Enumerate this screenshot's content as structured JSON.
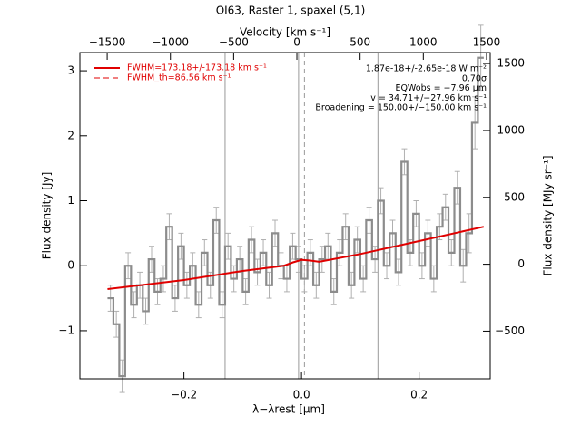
{
  "chart_data": {
    "type": "step",
    "title": "OI63, Raster 1, spaxel (5,1)",
    "xlabel": "λ−λrest [μm]",
    "ylabel": "Flux density [Jy]",
    "x2label": "Velocity [km s⁻¹]",
    "y2label": "Flux density [MJy sr⁻¹]",
    "xlim": [
      -0.377,
      0.321
    ],
    "ylim": [
      -1.74,
      3.28
    ],
    "x2lim": [
      -1716,
      1529
    ],
    "y2lim": [
      -856,
      1582
    ],
    "xticks": [
      {
        "value": -0.2,
        "label": "−0.2"
      },
      {
        "value": 0.0,
        "label": "0.0"
      },
      0.2
    ],
    "yticks": [
      {
        "value": -1,
        "label": "−1"
      },
      0,
      1,
      2,
      3
    ],
    "x2ticks": [
      {
        "value": -1500,
        "label": "−1500"
      },
      {
        "value": -1000,
        "label": "−1000"
      },
      {
        "value": -500,
        "label": "−500"
      },
      0,
      500,
      1000,
      1500
    ],
    "y2ticks": [
      {
        "value": -500,
        "label": "−500"
      },
      0,
      500,
      1000,
      1500
    ],
    "vlines": [
      -0.13,
      -0.005,
      0.13
    ],
    "vline_color": "#999999",
    "dashed_vlines": [
      0.005
    ],
    "legend": "upper left",
    "spectrum": {
      "color": "#8c8c8c",
      "error_color": "#b0b0b0",
      "x": [
        -0.325,
        -0.315,
        -0.305,
        -0.295,
        -0.285,
        -0.275,
        -0.265,
        -0.255,
        -0.245,
        -0.235,
        -0.225,
        -0.215,
        -0.205,
        -0.195,
        -0.185,
        -0.175,
        -0.165,
        -0.155,
        -0.145,
        -0.135,
        -0.125,
        -0.115,
        -0.105,
        -0.095,
        -0.085,
        -0.075,
        -0.065,
        -0.055,
        -0.045,
        -0.035,
        -0.025,
        -0.015,
        -0.005,
        0.005,
        0.015,
        0.025,
        0.035,
        0.045,
        0.055,
        0.065,
        0.075,
        0.085,
        0.095,
        0.105,
        0.115,
        0.125,
        0.135,
        0.145,
        0.155,
        0.165,
        0.175,
        0.185,
        0.195,
        0.205,
        0.215,
        0.225,
        0.235,
        0.245,
        0.255,
        0.265,
        0.275,
        0.285,
        0.295,
        0.305
      ],
      "values": [
        -0.5,
        -0.9,
        -1.7,
        0.0,
        -0.6,
        -0.3,
        -0.7,
        0.1,
        -0.4,
        -0.2,
        0.6,
        -0.5,
        0.3,
        -0.3,
        0.0,
        -0.6,
        0.2,
        -0.3,
        0.7,
        -0.6,
        0.3,
        -0.2,
        0.1,
        -0.4,
        0.4,
        -0.1,
        0.2,
        -0.3,
        0.5,
        0.0,
        -0.2,
        0.3,
        0.1,
        -0.2,
        0.2,
        -0.3,
        0.1,
        0.3,
        -0.4,
        0.2,
        0.6,
        -0.3,
        0.4,
        -0.2,
        0.7,
        0.1,
        1.0,
        0.0,
        0.5,
        -0.1,
        1.6,
        0.2,
        0.8,
        0.0,
        0.5,
        -0.2,
        0.6,
        0.9,
        0.2,
        1.2,
        0.0,
        0.5,
        2.2,
        3.2
      ],
      "errors": [
        0.2,
        0.2,
        0.25,
        0.2,
        0.2,
        0.2,
        0.2,
        0.2,
        0.2,
        0.2,
        0.2,
        0.2,
        0.2,
        0.2,
        0.2,
        0.2,
        0.2,
        0.2,
        0.2,
        0.2,
        0.2,
        0.2,
        0.2,
        0.2,
        0.2,
        0.2,
        0.2,
        0.2,
        0.2,
        0.2,
        0.2,
        0.2,
        0.2,
        0.2,
        0.2,
        0.2,
        0.2,
        0.2,
        0.2,
        0.2,
        0.2,
        0.2,
        0.2,
        0.2,
        0.2,
        0.2,
        0.2,
        0.2,
        0.2,
        0.2,
        0.2,
        0.2,
        0.2,
        0.2,
        0.2,
        0.2,
        0.2,
        0.2,
        0.2,
        0.25,
        0.25,
        0.3,
        0.4,
        0.5
      ]
    },
    "fits": [
      {
        "name": "FWHM=173.18+/-173.18 km s⁻¹",
        "color": "#e00000",
        "dash": false,
        "x": [
          -0.33,
          -0.2,
          -0.1,
          -0.03,
          -0.015,
          0.0,
          0.015,
          0.03,
          0.1,
          0.2,
          0.31
        ],
        "values": [
          -0.36,
          -0.22,
          -0.08,
          0.0,
          0.05,
          0.09,
          0.08,
          0.06,
          0.18,
          0.38,
          0.6
        ]
      },
      {
        "name": "FWHM_th=86.56 km s⁻¹",
        "color": "#e00000",
        "dash": true,
        "x": [
          -0.03,
          -0.01,
          0.0,
          0.01,
          0.03
        ],
        "values": [
          0.0,
          0.07,
          0.1,
          0.08,
          0.06
        ]
      }
    ],
    "annotations": [
      "1.87e-18+/-2.65e-18 W m⁻²",
      "0.70σ",
      "EQWobs = −7.96 μm",
      "v = 34.71+/−27.96 km s⁻¹",
      "Broadening = 150.00+/−150.00 km s⁻¹"
    ]
  }
}
